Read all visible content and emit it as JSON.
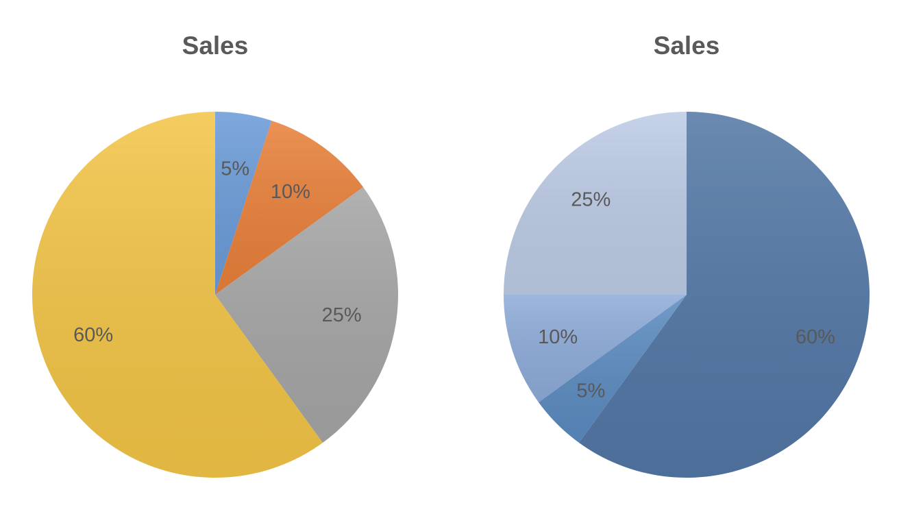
{
  "chart_data": [
    {
      "type": "pie",
      "title": "Sales",
      "start_angle_deg": 0,
      "direction": "clockwise",
      "slices": [
        {
          "value": 5,
          "label": "5%",
          "color": "#6a9bd8"
        },
        {
          "value": 10,
          "label": "10%",
          "color": "#e8803a"
        },
        {
          "value": 25,
          "label": "25%",
          "color": "#a5a5a5"
        },
        {
          "value": 60,
          "label": "60%",
          "color": "#f2c446"
        }
      ]
    },
    {
      "type": "pie",
      "title": "Sales",
      "start_angle_deg": 0,
      "direction": "clockwise",
      "slices": [
        {
          "value": 60,
          "label": "60%",
          "color": "#5277a5"
        },
        {
          "value": 5,
          "label": "5%",
          "color": "#5b8bc0"
        },
        {
          "value": 10,
          "label": "10%",
          "color": "#8dabd8"
        },
        {
          "value": 25,
          "label": "25%",
          "color": "#bccbe5"
        }
      ]
    }
  ]
}
